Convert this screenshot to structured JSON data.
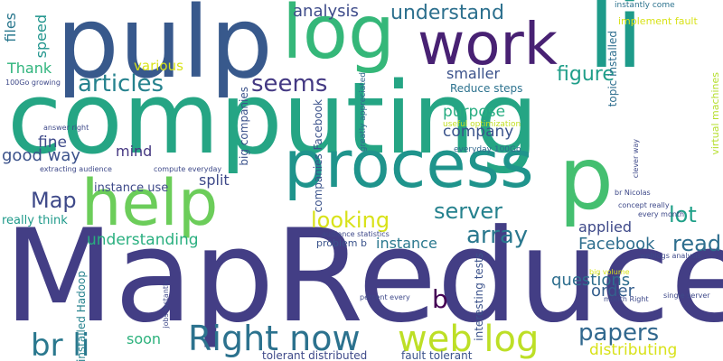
{
  "words": [
    {
      "text": "MapReduce",
      "color": "#433e85"
    },
    {
      "text": "computing",
      "color": "#25a584"
    },
    {
      "text": "pulp",
      "color": "#38598c"
    },
    {
      "text": "log",
      "color": "#35b779"
    },
    {
      "text": "work",
      "color": "#482173"
    },
    {
      "text": "li",
      "color": "#1e9b8a"
    },
    {
      "text": "process",
      "color": "#1f948c"
    },
    {
      "text": "help",
      "color": "#6ccd5a"
    },
    {
      "text": "p",
      "color": "#44bf70"
    },
    {
      "text": "Right now",
      "color": "#2c728e"
    },
    {
      "text": "web log",
      "color": "#bddf26"
    },
    {
      "text": "br li",
      "color": "#2a788e"
    },
    {
      "text": "articles",
      "color": "#26828e"
    },
    {
      "text": "seems",
      "color": "#443983"
    },
    {
      "text": "understand",
      "color": "#2d708e"
    },
    {
      "text": "analysis",
      "color": "#3e4c8a"
    },
    {
      "text": "looking",
      "color": "#d8e219"
    },
    {
      "text": "server",
      "color": "#26828e"
    },
    {
      "text": "array",
      "color": "#2a788e"
    },
    {
      "text": "papers",
      "color": "#31688e"
    },
    {
      "text": "distributing",
      "color": "#d8e219"
    },
    {
      "text": "b",
      "color": "#440154"
    },
    {
      "text": "Map",
      "color": "#3e4989"
    },
    {
      "text": "lot",
      "color": "#1fa088"
    },
    {
      "text": "read",
      "color": "#2e6e8e"
    },
    {
      "text": "Facebook",
      "color": "#2e6e8e"
    },
    {
      "text": "applied",
      "color": "#3e4989"
    },
    {
      "text": "order",
      "color": "#355f8d"
    },
    {
      "text": "questions",
      "color": "#2e6e8e"
    },
    {
      "text": "figure",
      "color": "#1f9e89"
    },
    {
      "text": "purpose",
      "color": "#26ad81"
    },
    {
      "text": "company",
      "color": "#3a538b"
    },
    {
      "text": "smaller",
      "color": "#3b528b"
    },
    {
      "text": "understanding",
      "color": "#29af7f"
    },
    {
      "text": "instance",
      "color": "#2a788e"
    },
    {
      "text": "good way",
      "color": "#3b528b"
    },
    {
      "text": "fine",
      "color": "#3e4989"
    },
    {
      "text": "split",
      "color": "#3e4989"
    },
    {
      "text": "mind",
      "color": "#453781"
    },
    {
      "text": "Thank",
      "color": "#2fb47c"
    },
    {
      "text": "files",
      "color": "#2a788e"
    },
    {
      "text": "speed",
      "color": "#1f948c"
    },
    {
      "text": "various",
      "color": "#d8e219"
    },
    {
      "text": "soon",
      "color": "#2db27d"
    },
    {
      "text": "Reduce steps",
      "color": "#2c728e"
    },
    {
      "text": "topic installed",
      "color": "#2e6e8e"
    },
    {
      "text": "implement fault",
      "color": "#d8e219"
    },
    {
      "text": "instantly come",
      "color": "#2c728e"
    },
    {
      "text": "virtual machines",
      "color": "#b5de2b"
    },
    {
      "text": "instance use",
      "color": "#3e4989"
    },
    {
      "text": "really think",
      "color": "#1f9a8a"
    },
    {
      "text": "installed Hadoop",
      "color": "#26828e"
    },
    {
      "text": "interesting tests",
      "color": "#3b528b"
    },
    {
      "text": "problem b",
      "color": "#3a538b"
    },
    {
      "text": "tolerant distributed",
      "color": "#3e4989"
    },
    {
      "text": "fault tolerant",
      "color": "#3b528b"
    },
    {
      "text": "big companies",
      "color": "#3b528b"
    },
    {
      "text": "companies Facebook",
      "color": "#3b528b"
    },
    {
      "text": "greatly appreciated",
      "color": "#31688e"
    },
    {
      "text": "useful optimization",
      "color": "#c2df23"
    },
    {
      "text": "everyday 100Go",
      "color": "#31688e"
    },
    {
      "text": "100Go growing",
      "color": "#3e4989"
    },
    {
      "text": "answer right",
      "color": "#3e4989"
    },
    {
      "text": "extracting audience",
      "color": "#3e4989"
    },
    {
      "text": "compute everyday",
      "color": "#3e4989"
    },
    {
      "text": "br Nicolas",
      "color": "#3e4989"
    },
    {
      "text": "concept really",
      "color": "#3e4989"
    },
    {
      "text": "every month",
      "color": "#3e4989"
    },
    {
      "text": "clever way",
      "color": "#3e4989"
    },
    {
      "text": "weblogs analysis",
      "color": "#3e4989"
    },
    {
      "text": "big volume",
      "color": "#d8e219"
    },
    {
      "text": "month Right",
      "color": "#3e4989"
    },
    {
      "text": "single server",
      "color": "#3e4989"
    },
    {
      "text": "percent every",
      "color": "#3e4989"
    },
    {
      "text": "audience statistics",
      "color": "#3e4989"
    },
    {
      "text": "jobs instantly",
      "color": "#3e4989"
    }
  ]
}
